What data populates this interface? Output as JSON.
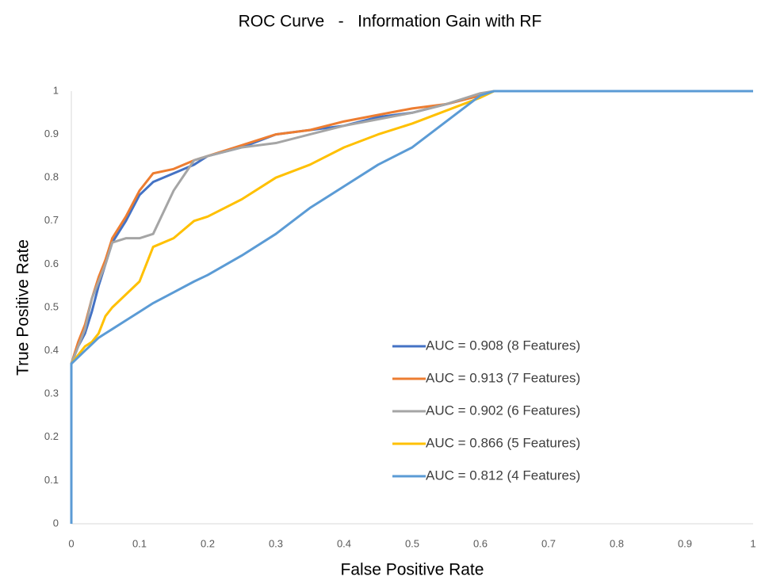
{
  "chart_data": {
    "type": "line",
    "title": "ROC Curve   -   Information Gain with RF",
    "x_label": "False Positive Rate",
    "y_label": "True Positive Rate",
    "x": [
      0,
      0,
      0.01,
      0.02,
      0.03,
      0.04,
      0.05,
      0.06,
      0.08,
      0.1,
      0.12,
      0.15,
      0.18,
      0.2,
      0.25,
      0.3,
      0.35,
      0.4,
      0.45,
      0.5,
      0.55,
      0.6,
      0.62,
      0.7,
      0.8,
      0.9,
      1
    ],
    "series": [
      {
        "name": "AUC = 0.908 (8 Features)",
        "color": "#4472c4",
        "values": [
          0,
          0.37,
          0.41,
          0.44,
          0.49,
          0.55,
          0.6,
          0.65,
          0.7,
          0.76,
          0.79,
          0.81,
          0.83,
          0.85,
          0.87,
          0.9,
          0.91,
          0.92,
          0.94,
          0.95,
          0.97,
          0.99,
          1,
          1,
          1,
          1,
          1
        ]
      },
      {
        "name": "AUC = 0.913 (7 Features)",
        "color": "#ed7d31",
        "values": [
          0,
          0.37,
          0.42,
          0.46,
          0.52,
          0.57,
          0.61,
          0.66,
          0.71,
          0.77,
          0.81,
          0.82,
          0.84,
          0.85,
          0.875,
          0.9,
          0.91,
          0.93,
          0.945,
          0.96,
          0.97,
          0.99,
          1,
          1,
          1,
          1,
          1
        ]
      },
      {
        "name": "AUC = 0.902 (6 Features)",
        "color": "#a5a5a5",
        "values": [
          0,
          0.37,
          0.41,
          0.45,
          0.52,
          0.56,
          0.6,
          0.65,
          0.66,
          0.66,
          0.67,
          0.77,
          0.84,
          0.85,
          0.87,
          0.88,
          0.9,
          0.92,
          0.935,
          0.95,
          0.97,
          0.995,
          1,
          1,
          1,
          1,
          1
        ]
      },
      {
        "name": "AUC = 0.866 (5 Features)",
        "color": "#ffc000",
        "values": [
          0,
          0.37,
          0.39,
          0.41,
          0.42,
          0.44,
          0.48,
          0.5,
          0.53,
          0.56,
          0.64,
          0.66,
          0.7,
          0.71,
          0.75,
          0.8,
          0.83,
          0.87,
          0.9,
          0.925,
          0.955,
          0.985,
          1,
          1,
          1,
          1,
          1
        ]
      },
      {
        "name": "AUC = 0.812 (4 Features)",
        "color": "#5b9bd5",
        "values": [
          0,
          0.37,
          0.385,
          0.4,
          0.415,
          0.43,
          0.44,
          0.45,
          0.47,
          0.49,
          0.51,
          0.535,
          0.56,
          0.575,
          0.62,
          0.67,
          0.73,
          0.78,
          0.83,
          0.87,
          0.93,
          0.99,
          1,
          1,
          1,
          1,
          1
        ]
      }
    ],
    "xlim": [
      0,
      1
    ],
    "xticks": [
      0,
      0.1,
      0.2,
      0.3,
      0.4,
      0.5,
      0.6,
      0.7,
      0.8,
      0.9,
      1
    ],
    "ylim": [
      0,
      1
    ],
    "yticks": [
      0,
      0.1,
      0.2,
      0.3,
      0.4,
      0.5,
      0.6,
      0.7,
      0.8,
      0.9,
      1
    ],
    "grid": false,
    "legend": "lower right"
  }
}
